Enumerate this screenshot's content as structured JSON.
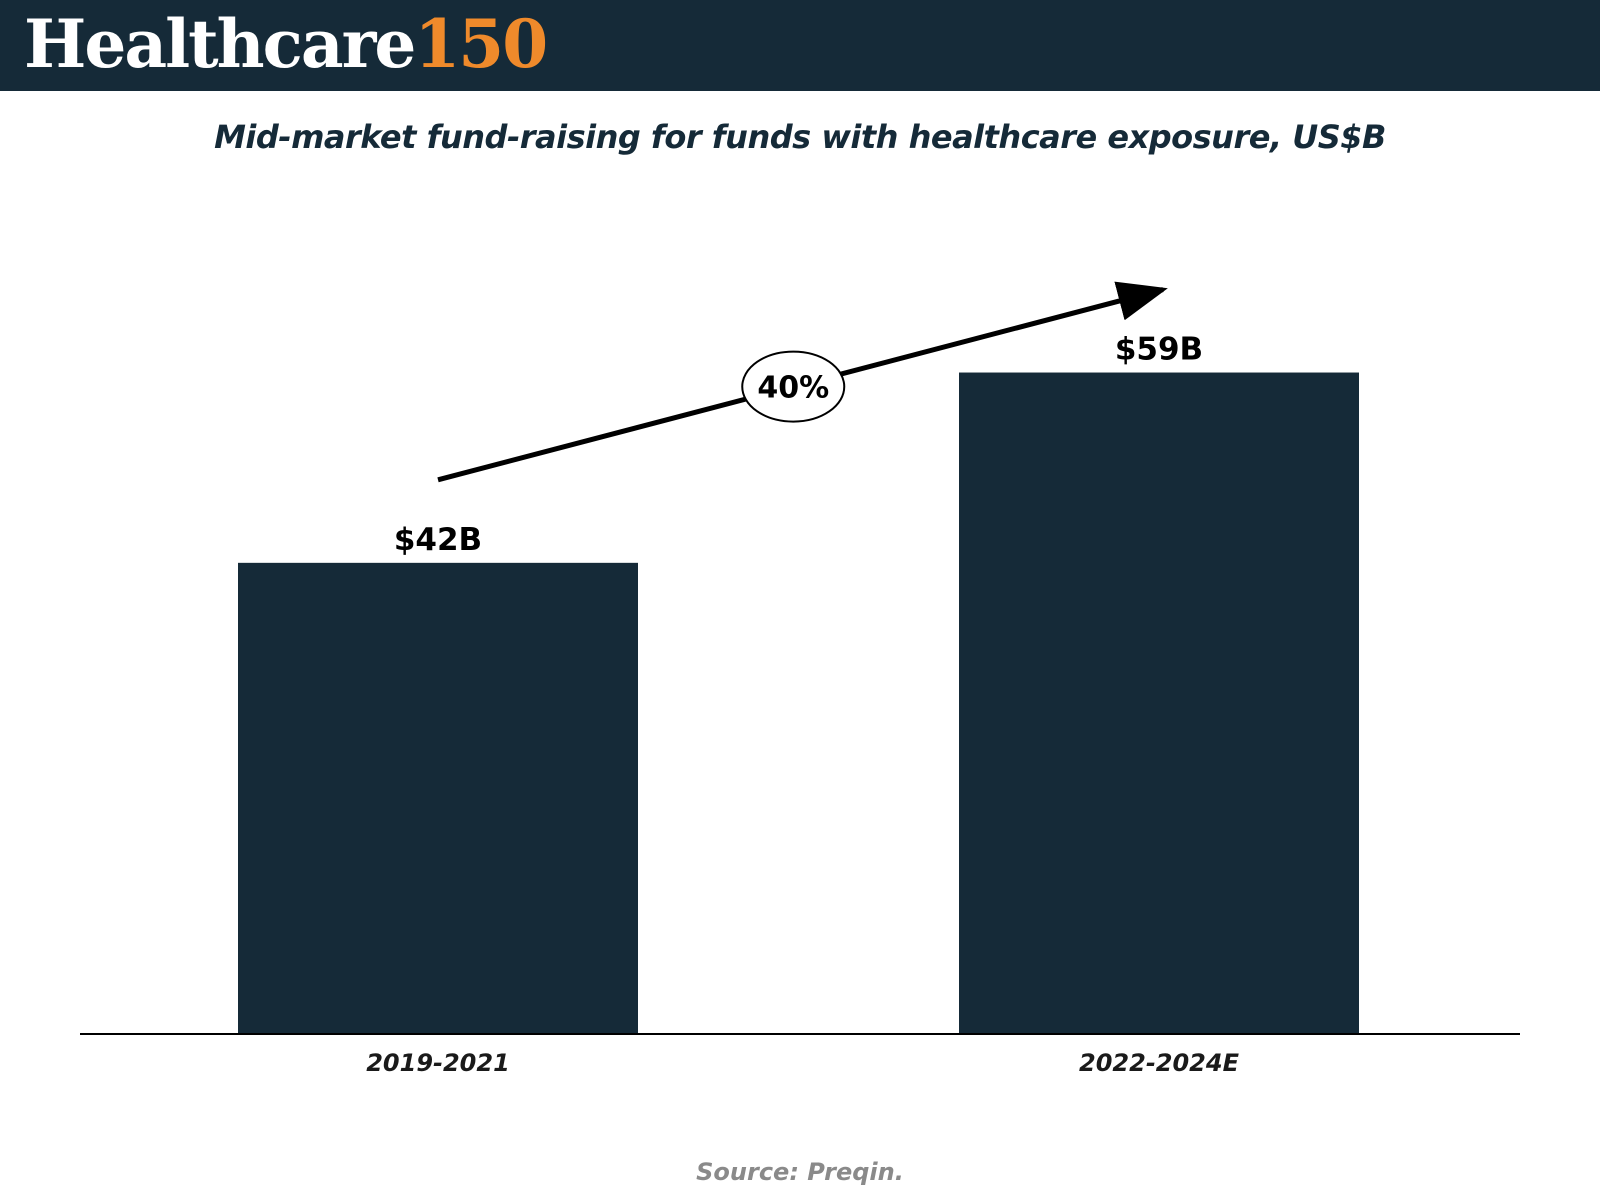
{
  "header": {
    "logo_word": "Healthcare",
    "logo_number": "150",
    "background_color": "#152a38",
    "accent_color": "#ef8a2b"
  },
  "chart_data": {
    "type": "bar",
    "title": "Mid-market fund-raising for funds with healthcare exposure, US$B",
    "categories": [
      "2019-2021",
      "2022-2024E"
    ],
    "values": [
      42,
      59
    ],
    "data_labels": [
      "$42B",
      "$59B"
    ],
    "annotation": "40%",
    "bar_color": "#152a38",
    "ylim": [
      0,
      72
    ],
    "xlabel": "",
    "ylabel": "",
    "grid": false,
    "legend": "none"
  },
  "source": "Source: Preqin."
}
